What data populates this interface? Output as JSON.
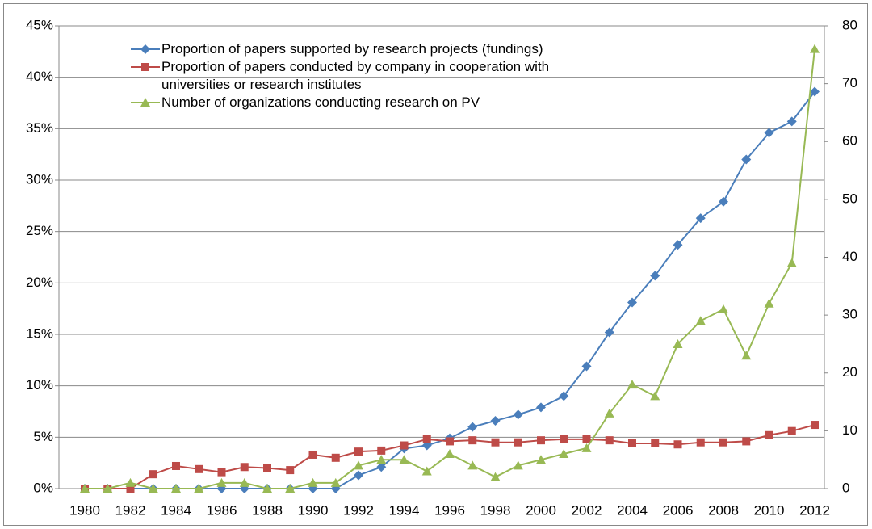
{
  "chart_data": {
    "type": "line",
    "categories": [
      "1980",
      null,
      "1982",
      null,
      "1984",
      null,
      "1986",
      null,
      "1988",
      null,
      "1990",
      null,
      "1992",
      null,
      "1994",
      null,
      "1996",
      null,
      "1998",
      null,
      "2000",
      null,
      "2002",
      null,
      "2004",
      null,
      "2006",
      null,
      "2008",
      null,
      "2010",
      null,
      "2012"
    ],
    "series": [
      {
        "name": "Proportion of papers supported by research projects (fundings)",
        "color": "#4a7ebb",
        "marker": "diamond",
        "values": [
          0,
          0,
          0,
          0,
          0,
          0,
          0,
          0,
          0,
          0,
          0,
          0,
          1.3,
          2.1,
          3.9,
          4.2,
          4.9,
          6.0,
          6.6,
          7.2,
          7.9,
          9.0,
          11.9,
          15.2,
          18.1,
          20.7,
          23.7,
          26.3,
          27.9,
          32.0,
          34.6,
          35.7,
          38.6
        ]
      },
      {
        "name": "Proportion of papers conducted by company in cooperation with universities or research institutes",
        "color": "#be4b48",
        "marker": "square",
        "values": [
          0,
          0,
          0,
          1.4,
          2.2,
          1.9,
          1.6,
          2.1,
          2.0,
          1.8,
          3.3,
          3.0,
          3.6,
          3.7,
          4.2,
          4.8,
          4.6,
          4.7,
          4.5,
          4.5,
          4.7,
          4.8,
          4.8,
          4.7,
          4.4,
          4.4,
          4.3,
          4.5,
          4.5,
          4.6,
          5.2,
          5.6,
          6.2
        ]
      },
      {
        "name": "Number of organizations conducting research on PV",
        "color": "#98b954",
        "marker": "triangle",
        "axis": "y2",
        "values": [
          0,
          0,
          1,
          0,
          0,
          0,
          1,
          1,
          0,
          0,
          1,
          1,
          4,
          5,
          5,
          3,
          6,
          4,
          2,
          4,
          5,
          6,
          7,
          13,
          18,
          16,
          25,
          29,
          31,
          23,
          32,
          39,
          76
        ]
      }
    ],
    "ylim": [
      0,
      45
    ],
    "yticks": [
      {
        "value": 0,
        "label": "0%"
      },
      {
        "value": 5,
        "label": "5%"
      },
      {
        "value": 10,
        "label": "10%"
      },
      {
        "value": 15,
        "label": "15%"
      },
      {
        "value": 20,
        "label": "20%"
      },
      {
        "value": 25,
        "label": "25%"
      },
      {
        "value": 30,
        "label": "30%"
      },
      {
        "value": 35,
        "label": "35%"
      },
      {
        "value": 40,
        "label": "40%"
      },
      {
        "value": 45,
        "label": "45%"
      }
    ],
    "y2lim": [
      0,
      80
    ],
    "y2ticks": [
      0,
      10,
      20,
      30,
      40,
      50,
      60,
      70,
      80
    ],
    "grid": true,
    "legend": "upper left"
  }
}
